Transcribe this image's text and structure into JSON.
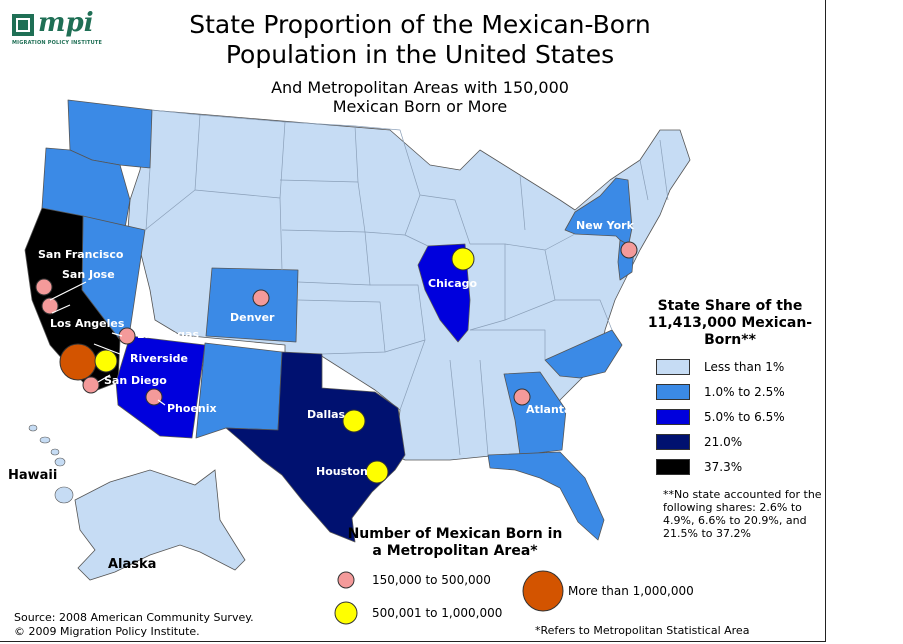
{
  "header": {
    "title": "State Proportion of the Mexican-Born Population in the United States",
    "subtitle": "And Metropolitan Areas with 150,000 Mexican Born or More"
  },
  "logo": {
    "wordmark": "mpi",
    "org": "MIGRATION POLICY INSTITUTE"
  },
  "colors": {
    "lt1": "#c6dcf4",
    "c1": "#3b8ae6",
    "c5": "#0000dd",
    "c21": "#001170",
    "c37": "#000000",
    "small_circle": "#f49a9a",
    "mid_circle": "#ffff00",
    "big_circle": "#d35400"
  },
  "state_legend": {
    "title": "State Share of the 11,413,000 Mexican-Born**",
    "items": [
      {
        "label": "Less than 1%",
        "color": "#c6dcf4"
      },
      {
        "label": "1.0% to 2.5%",
        "color": "#3b8ae6"
      },
      {
        "label": "5.0% to 6.5%",
        "color": "#0000dd"
      },
      {
        "label": "21.0%",
        "color": "#001170"
      },
      {
        "label": "37.3%",
        "color": "#000000"
      }
    ],
    "note": "**No state accounted for the following shares: 2.6% to 4.9%, 6.6% to 20.9%, and 21.5% to 37.2%"
  },
  "metro_legend": {
    "title": "Number of Mexican Born in a Metropolitan Area*",
    "small": "150,000 to 500,000",
    "mid": "500,001 to 1,000,000",
    "big": "More than 1,000,000"
  },
  "regions": {
    "hawaii": "Hawaii",
    "alaska": "Alaska"
  },
  "cities": {
    "san_francisco": "San Francisco",
    "san_jose": "San Jose",
    "los_angeles": "Los Angeles",
    "las_vegas": "Las Vegas",
    "riverside": "Riverside",
    "san_diego": "San Diego",
    "phoenix": "Phoenix",
    "denver": "Denver",
    "dallas": "Dallas",
    "houston": "Houston",
    "chicago": "Chicago",
    "atlanta": "Atlanta",
    "new_york": "New York"
  },
  "footer": {
    "source": "Source: 2008 American Community Survey.",
    "copyright": "© 2009 Migration Policy Institute.",
    "refers": "*Refers to Metropolitan Statistical Area"
  }
}
